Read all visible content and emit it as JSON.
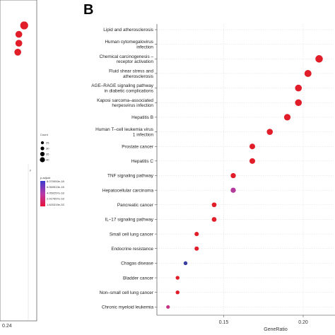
{
  "panel_b_label": "B",
  "chart_data": [
    {
      "type": "scatter",
      "title": "",
      "panel": "",
      "xlabel": "",
      "ylabel": "",
      "x_tick_labels": [
        "0.24"
      ],
      "xlim": [
        0.1,
        0.25
      ],
      "legend": {
        "count_title": "Count",
        "count_values": [
          "25",
          "30",
          "35",
          "40"
        ],
        "padj_title": "p.adjust",
        "padj_labels": [
          "8.070000e-18",
          "6.060513e-18",
          "4.050257e-18",
          "2.017657e-18",
          "1.620319e-33"
        ]
      },
      "points": [
        {
          "x": 0.24,
          "rank": 0,
          "count": 40,
          "p_adjust_level": 0.05
        },
        {
          "x": 0.23,
          "rank": 1,
          "count": 35,
          "p_adjust_level": 0.05
        },
        {
          "x": 0.23,
          "rank": 2,
          "count": 35,
          "p_adjust_level": 0.05
        },
        {
          "x": 0.228,
          "rank": 3,
          "count": 35,
          "p_adjust_level": 0.05
        }
      ]
    },
    {
      "type": "scatter",
      "title": "",
      "panel": "B",
      "xlabel": "GeneRatio",
      "ylabel": "",
      "xlim": [
        0.108,
        0.22
      ],
      "x_ticks": [
        0.15,
        0.2
      ],
      "x_tick_labels": [
        "0.15",
        "0.20"
      ],
      "categories": [
        "Lipid and atherosclerosis",
        "Human cytomegalovirus infection",
        "Chemical carcinogenesis – receptor activation",
        "Fluid shear stress and atherosclerosis",
        "AGE–RAGE signaling pathway in diabetic complications",
        "Kaposi sarcoma–associated herpesvirus infection",
        "Hepatitis B",
        "Human T–cell leukemia virus 1 infection",
        "Prostate cancer",
        "Hepatitis C",
        "TNF signaling pathway",
        "Hepatocellular carcinoma",
        "Pancreatic cancer",
        "IL–17 signaling pathway",
        "Small cell lung cancer",
        "Endocrine resistance",
        "Chagas disease",
        "Bladder cancer",
        "Non–small cell lung cancer",
        "Chronic myeloid leukemia"
      ],
      "category_lines": [
        [
          "Lipid and atherosclerosis"
        ],
        [
          "Human cytomegalovirus",
          "infection"
        ],
        [
          "Chemical carcinogenesis –",
          "receptor activation"
        ],
        [
          "Fluid shear stress and",
          "atherosclerosis"
        ],
        [
          "AGE–RAGE signaling pathway",
          "in diabetic complications"
        ],
        [
          "Kaposi sarcoma–associated",
          "herpesvirus infection"
        ],
        [
          "Hepatitis B"
        ],
        [
          "Human T–cell leukemia virus",
          "1 infection"
        ],
        [
          "Prostate cancer"
        ],
        [
          "Hepatitis C"
        ],
        [
          "TNF signaling pathway"
        ],
        [
          "Hepatocellular carcinoma"
        ],
        [
          "Pancreatic cancer"
        ],
        [
          "IL–17 signaling pathway"
        ],
        [
          "Small cell lung cancer"
        ],
        [
          "Endocrine resistance"
        ],
        [
          "Chagas disease"
        ],
        [
          "Bladder cancer"
        ],
        [
          "Non–small cell lung cancer"
        ],
        [
          "Chronic myeloid leukemia"
        ]
      ],
      "gene_ratio": [
        0.225,
        0.226,
        0.21,
        0.203,
        0.197,
        0.197,
        0.19,
        0.179,
        0.168,
        0.168,
        0.156,
        0.156,
        0.144,
        0.144,
        0.133,
        0.133,
        0.126,
        0.121,
        0.121,
        0.115
      ],
      "count": [
        40,
        40,
        38,
        36,
        35,
        35,
        34,
        32,
        30,
        30,
        28,
        28,
        26,
        26,
        24,
        24,
        22,
        22,
        22,
        21
      ],
      "p_adjust_level": [
        0.05,
        0.08,
        0.05,
        0.05,
        0.05,
        0.05,
        0.05,
        0.05,
        0.05,
        0.05,
        0.05,
        0.55,
        0.05,
        0.05,
        0.05,
        0.05,
        0.95,
        0.05,
        0.05,
        0.4
      ],
      "colors": {
        "low_p": "#e41a1c",
        "mid_p": "#c0399a",
        "high_p": "#2c3fa0",
        "grid": "#d9d9d9"
      }
    }
  ]
}
